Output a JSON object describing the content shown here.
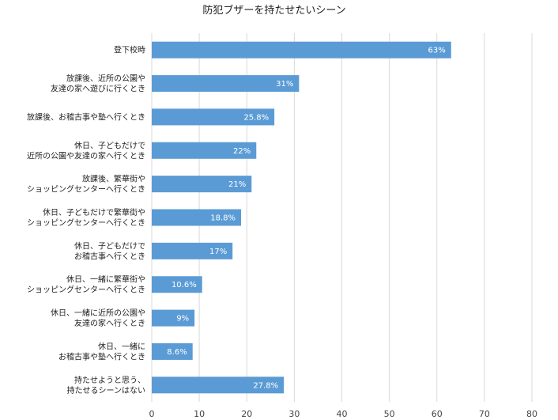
{
  "chart_data": {
    "type": "bar",
    "orientation": "horizontal",
    "title": "防犯ブザーを持たせたいシーン",
    "xlabel": "",
    "ylabel": "",
    "xlim": [
      0,
      80
    ],
    "ticks": [
      0,
      10,
      20,
      30,
      40,
      50,
      60,
      70,
      80
    ],
    "grid": true,
    "legend": "none",
    "bar_color": "#5b9bd5",
    "categories": [
      [
        "登下校時"
      ],
      [
        "放課後、近所の公園や",
        "友達の家へ遊びに行くとき"
      ],
      [
        "放課後、お稽古事や塾へ行くとき"
      ],
      [
        "休日、子どもだけで",
        "近所の公園や友達の家へ行くとき"
      ],
      [
        "放課後、繁華街や",
        "ショッピングセンターへ行くとき"
      ],
      [
        "休日、子どもだけで繁華街や",
        "ショッピングセンターへ行くとき"
      ],
      [
        "休日、子どもだけで",
        "お稽古事へ行くとき"
      ],
      [
        "休日、一緒に繁華街や",
        "ショッピングセンターへ行くとき"
      ],
      [
        "休日、一緒に近所の公園や",
        "友達の家へ行くとき"
      ],
      [
        "休日、一緒に",
        "お稽古事や塾へ行くとき"
      ],
      [
        "持たせようと思う、",
        "持たせるシーンはない"
      ]
    ],
    "values": [
      63,
      31,
      25.8,
      22,
      21,
      18.8,
      17,
      10.6,
      9,
      8.6,
      27.8
    ],
    "data_labels": [
      "63%",
      "31%",
      "25.8%",
      "22%",
      "21%",
      "18.8%",
      "17%",
      "10.6%",
      "9%",
      "8.6%",
      "27.8%"
    ]
  }
}
